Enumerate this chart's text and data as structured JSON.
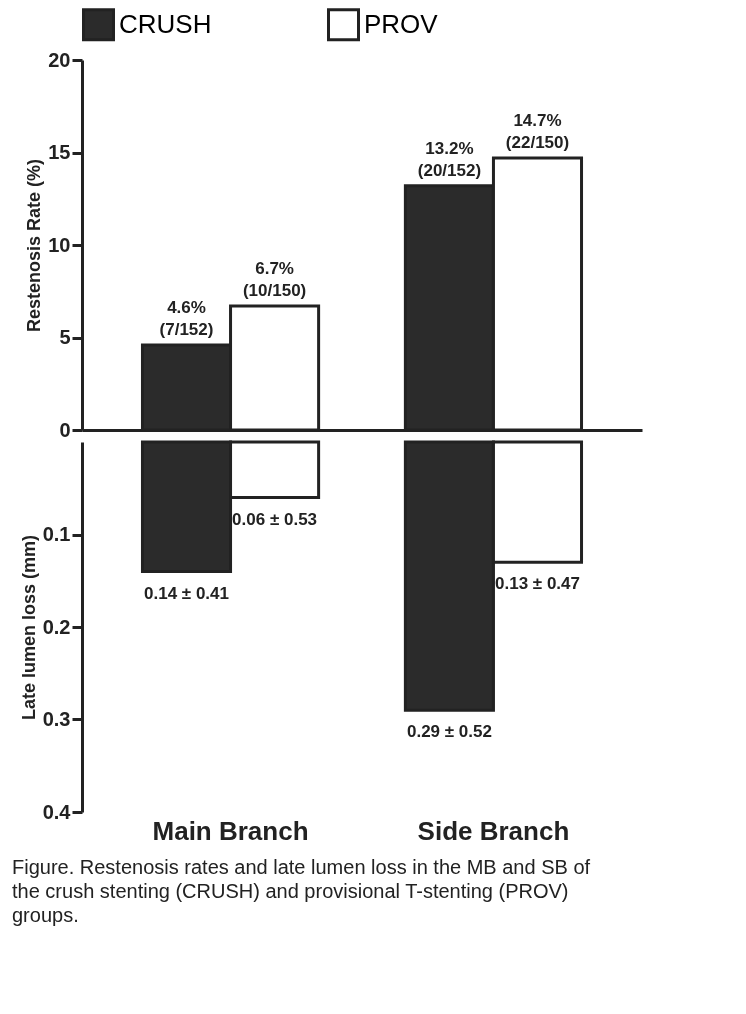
{
  "chart_data": [
    {
      "type": "bar",
      "categories": [
        "Main Branch",
        "Side Branch"
      ],
      "ylabel": "Restenosis Rate (%)",
      "ylim": [
        0,
        20
      ],
      "yticks": [
        0,
        5,
        10,
        15,
        20
      ],
      "grid": false,
      "legend": "top",
      "tick_labels": "y",
      "series": [
        {
          "name": "CRUSH",
          "color": "#2b2b2b",
          "values": [
            4.6,
            13.2
          ],
          "value_labels": [
            "4.6%\n(7/152)",
            "13.2%\n(20/152)"
          ]
        },
        {
          "name": "PROV",
          "color": "#ffffff",
          "values": [
            6.7,
            14.7
          ],
          "value_labels": [
            "6.7%\n(10/150)",
            "14.7%\n(22/150)"
          ]
        }
      ]
    },
    {
      "type": "bar",
      "categories": [
        "Main Branch",
        "Side Branch"
      ],
      "ylabel": "Late lumen loss (mm)",
      "ylim": [
        0.4,
        0
      ],
      "yticks": [
        0.1,
        0.2,
        0.3,
        0.4
      ],
      "grid": false,
      "legend": false,
      "series": [
        {
          "color": "#2b2b2b",
          "values": [
            0.14,
            0.29
          ],
          "value_labels": [
            "0.14 ± 0.41",
            "0.29 ± 0.52"
          ]
        },
        {
          "color": "#ffffff",
          "values": [
            0.06,
            0.13
          ],
          "value_labels": [
            "0.06 ± 0.53",
            "0.13 ± 0.47"
          ]
        }
      ],
      "annotations": [
        "Figure. Restenosis rates and late lumen loss in the MB and SB of the crush stenting (CRUSH) and provisional T-stenting (PROV) groups."
      ]
    }
  ]
}
